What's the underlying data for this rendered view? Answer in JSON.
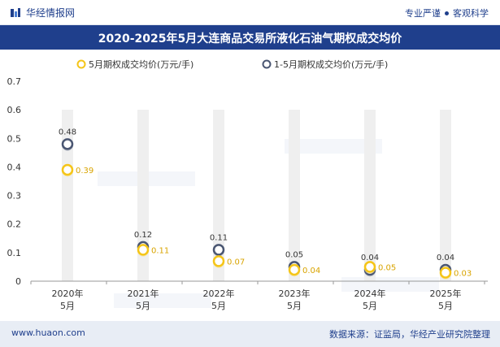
{
  "header": {
    "brand": "华经情报网",
    "slogan_left": "专业严谨",
    "slogan_right": "客观科学"
  },
  "title": "2020-2025年5月大连商品交易所液化石油气期权成交均价",
  "footer": {
    "site": "www.huaon.com",
    "source": "数据来源：证监局，华经产业研究院整理"
  },
  "colors": {
    "brand_blue": "#1f3f8c",
    "series1": "#f5c518",
    "series2": "#4a5672",
    "column_bg": "#efefef"
  },
  "chart_data": {
    "type": "line",
    "categories": [
      "2020年\n5月",
      "2021年\n5月",
      "2022年\n5月",
      "2023年\n5月",
      "2024年\n5月",
      "2025年\n5月"
    ],
    "ylim": [
      0,
      0.7
    ],
    "yticks": [
      "0",
      "0.1",
      "0.2",
      "0.3",
      "0.4",
      "0.5",
      "0.6",
      "0.7"
    ],
    "legend_position": "top",
    "series": [
      {
        "name": "5月期权成交均价(万元/手)",
        "values": [
          0.39,
          0.11,
          0.07,
          0.04,
          0.05,
          0.03
        ],
        "labels": [
          "0.39",
          "0.11",
          "0.07",
          "0.04",
          "0.05",
          "0.03"
        ]
      },
      {
        "name": "1-5月期权成交均价(万元/手)",
        "values": [
          0.48,
          0.12,
          0.11,
          0.05,
          0.04,
          0.04
        ],
        "labels": [
          "0.48",
          "0.12",
          "0.11",
          "0.05",
          "0.04",
          "0.04"
        ]
      }
    ]
  }
}
